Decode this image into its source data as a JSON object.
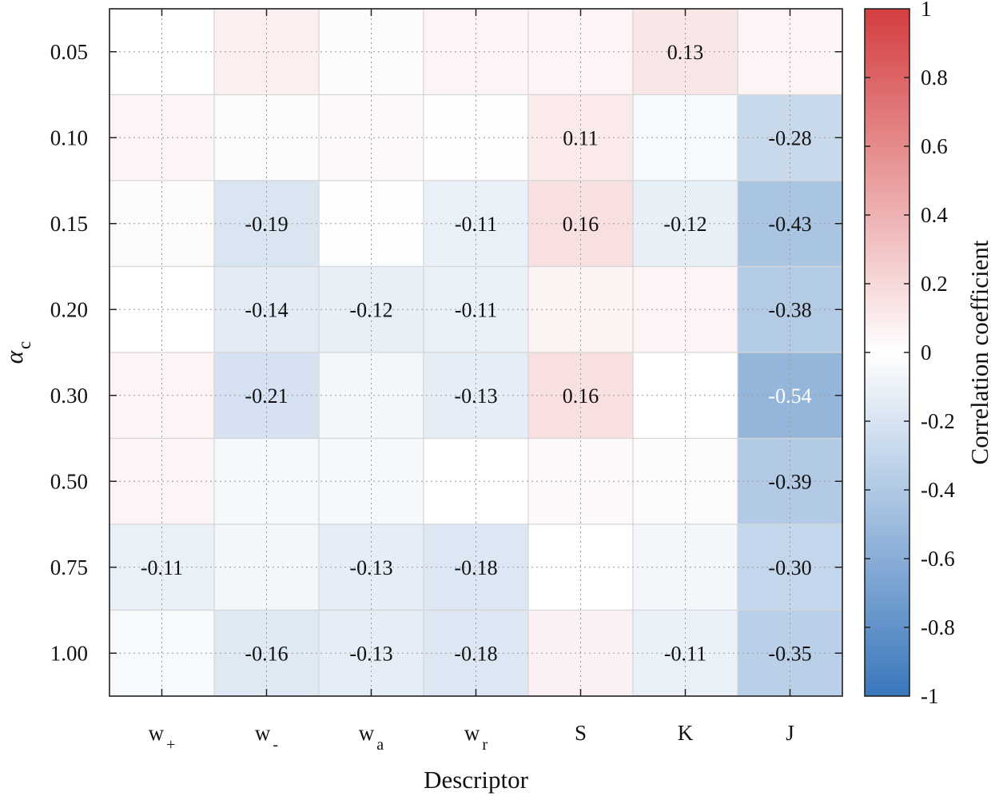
{
  "chart_data": {
    "type": "heatmap",
    "xlabel": "Descriptor",
    "ylabel_symbol": "α",
    "ylabel_subscript": "c",
    "x_categories": [
      {
        "base": "w",
        "sub": "+"
      },
      {
        "base": "w",
        "sub": "-"
      },
      {
        "base": "w",
        "sub": "a"
      },
      {
        "base": "w",
        "sub": "r"
      },
      {
        "base": "S",
        "sub": ""
      },
      {
        "base": "K",
        "sub": ""
      },
      {
        "base": "J",
        "sub": ""
      }
    ],
    "y_categories": [
      "0.05",
      "0.10",
      "0.15",
      "0.20",
      "0.30",
      "0.50",
      "0.75",
      "1.00"
    ],
    "values": [
      [
        0.0,
        0.08,
        0.02,
        0.05,
        0.05,
        0.13,
        0.05
      ],
      [
        0.05,
        -0.03,
        0.03,
        0.01,
        0.11,
        -0.04,
        -0.28
      ],
      [
        0.02,
        -0.19,
        -0.01,
        -0.11,
        0.16,
        -0.12,
        -0.43
      ],
      [
        0.0,
        -0.14,
        -0.12,
        -0.11,
        0.06,
        0.05,
        -0.38
      ],
      [
        0.05,
        -0.21,
        -0.06,
        -0.13,
        0.16,
        0.0,
        -0.54
      ],
      [
        0.05,
        -0.05,
        -0.05,
        0.0,
        0.03,
        0.02,
        -0.39
      ],
      [
        -0.11,
        -0.06,
        -0.13,
        -0.18,
        0.0,
        -0.06,
        -0.3
      ],
      [
        -0.04,
        -0.16,
        -0.13,
        -0.18,
        0.07,
        -0.11,
        -0.35
      ]
    ],
    "labels": [
      [
        "",
        "",
        "",
        "",
        "",
        "0.13",
        ""
      ],
      [
        "",
        "",
        "",
        "",
        "0.11",
        "",
        "-0.28"
      ],
      [
        "",
        "-0.19",
        "",
        "-0.11",
        "0.16",
        "-0.12",
        "-0.43"
      ],
      [
        "",
        "-0.14",
        "-0.12",
        "-0.11",
        "",
        "",
        "-0.38"
      ],
      [
        "",
        "-0.21",
        "",
        "-0.13",
        "0.16",
        "",
        "-0.54"
      ],
      [
        "",
        "",
        "",
        "",
        "",
        "",
        "-0.39"
      ],
      [
        "-0.11",
        "",
        "-0.13",
        "-0.18",
        "",
        "",
        "-0.30"
      ],
      [
        "",
        "-0.16",
        "-0.13",
        "-0.18",
        "",
        "-0.11",
        "-0.35"
      ]
    ],
    "colorbar": {
      "label": "Correlation coefficient",
      "range": [
        -1,
        1
      ],
      "ticks": [
        "1",
        "0.8",
        "0.6",
        "0.4",
        "0.2",
        "0",
        "-0.2",
        "-0.4",
        "-0.6",
        "-0.8",
        "-1"
      ],
      "color_min": "#3a77bc",
      "color_mid": "#ffffff",
      "color_max": "#d43d3f"
    },
    "grid": true
  }
}
